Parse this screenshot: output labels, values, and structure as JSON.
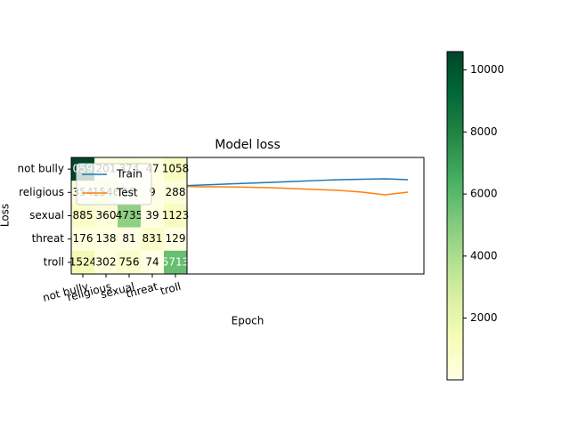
{
  "chart_data": [
    {
      "type": "heatmap",
      "categories": [
        "not bully",
        "religious",
        "sexual",
        "threat",
        "troll"
      ],
      "matrix": [
        [
          10592,
          201,
          374,
          47,
          1058
        ],
        [
          354,
          1546,
          17,
          9,
          288
        ],
        [
          885,
          360,
          4735,
          39,
          1123
        ],
        [
          176,
          138,
          81,
          831,
          129
        ],
        [
          1524,
          302,
          756,
          74,
          5713
        ]
      ],
      "clim": [
        9,
        10592
      ],
      "colorbar_ticks": [
        2000,
        4000,
        6000,
        8000,
        10000
      ],
      "colormap": [
        "#ffffe5",
        "#f7fcb9",
        "#d9f0a3",
        "#addd8e",
        "#78c679",
        "#41ab5d",
        "#238443",
        "#006837",
        "#004529"
      ]
    },
    {
      "type": "line",
      "title": "Model loss",
      "x_label": "Epoch",
      "y_label": "Loss",
      "x": [
        0,
        1,
        2,
        3,
        4,
        5,
        6,
        7,
        8,
        9,
        10,
        11,
        12,
        13,
        14
      ],
      "xlim": [
        -0.7,
        14.7
      ],
      "ylim": [
        0,
        1
      ],
      "legend": "upper left",
      "series": [
        {
          "name": "Train",
          "color": "#1f77b4",
          "values": [
            0.733,
            0.74,
            0.748,
            0.752,
            0.756,
            0.763,
            0.771,
            0.779,
            0.786,
            0.794,
            0.802,
            0.809,
            0.813,
            0.817,
            0.809
          ]
        },
        {
          "name": "Test",
          "color": "#ff7f0e",
          "values": [
            0.779,
            0.771,
            0.763,
            0.756,
            0.752,
            0.748,
            0.748,
            0.744,
            0.74,
            0.733,
            0.725,
            0.718,
            0.702,
            0.679,
            0.702
          ]
        }
      ]
    }
  ]
}
